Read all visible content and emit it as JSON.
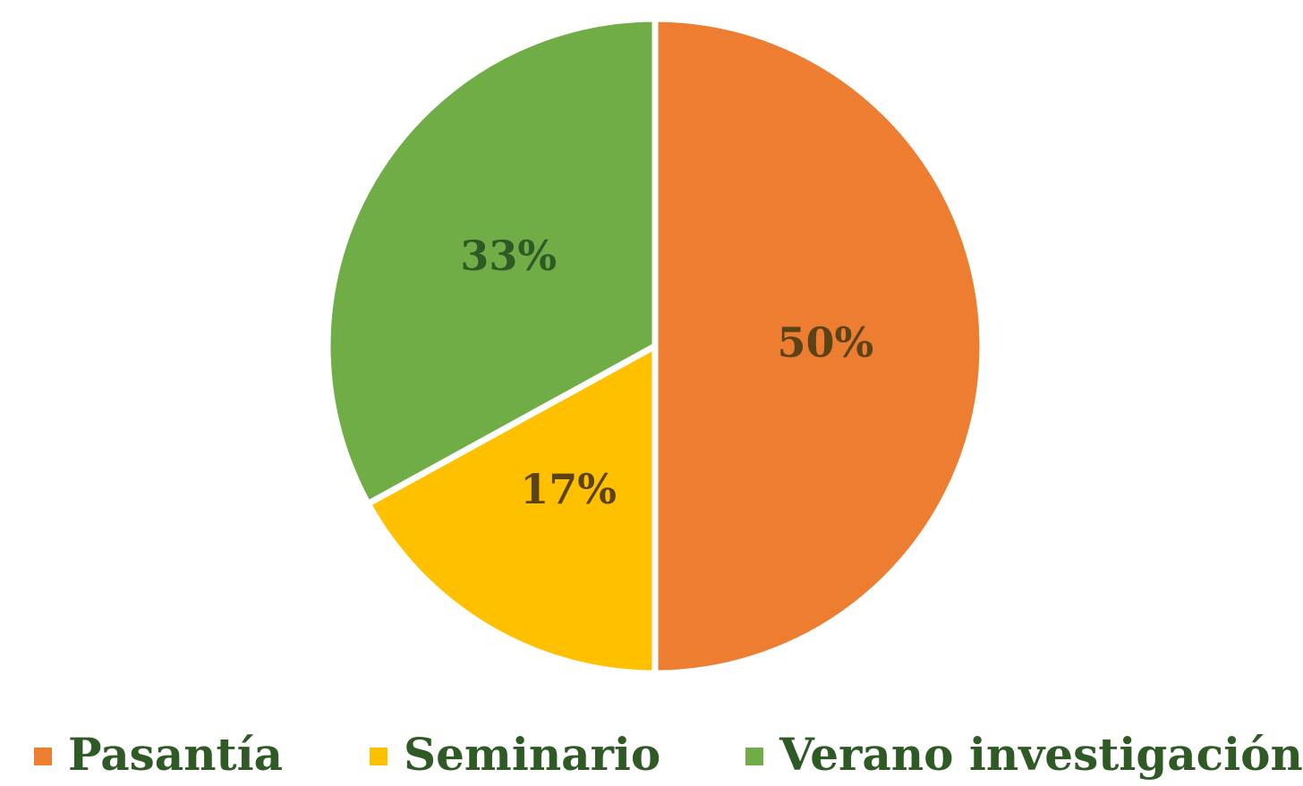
{
  "chart_data": {
    "type": "pie",
    "categories": [
      "Pasantía",
      "Seminario",
      "Verano investigación"
    ],
    "values": [
      50,
      17,
      33
    ],
    "value_labels": [
      "50%",
      "17%",
      "33%"
    ],
    "colors": [
      "#ED7D31",
      "#FFC000",
      "#70AD47"
    ]
  }
}
